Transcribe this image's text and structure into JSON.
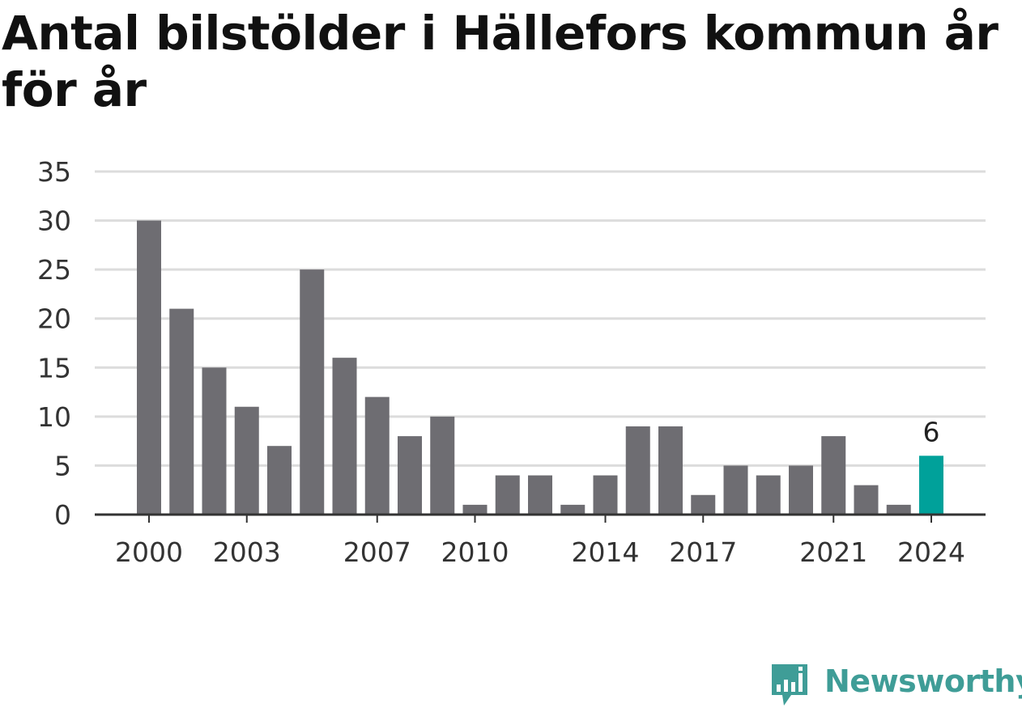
{
  "title": "Antal bilstölder i Hällefors kommun år för år",
  "brand": {
    "name": "Newsworthy",
    "color": "#3f9d97",
    "icon": "newsworthy-logo-icon"
  },
  "colors": {
    "bar": "#6e6d72",
    "highlight": "#00a19a",
    "grid": "#dcdcdc",
    "axis": "#333333"
  },
  "chart_data": {
    "type": "bar",
    "title": "Antal bilstölder i Hällefors kommun år för år",
    "xlabel": "",
    "ylabel": "",
    "categories": [
      "2000",
      "2001",
      "2002",
      "2003",
      "2004",
      "2005",
      "2006",
      "2007",
      "2008",
      "2009",
      "2010",
      "2011",
      "2012",
      "2013",
      "2014",
      "2015",
      "2016",
      "2017",
      "2018",
      "2019",
      "2020",
      "2021",
      "2022",
      "2023",
      "2024"
    ],
    "values": [
      30,
      21,
      15,
      11,
      7,
      25,
      16,
      12,
      8,
      10,
      1,
      4,
      4,
      1,
      4,
      9,
      9,
      2,
      5,
      4,
      5,
      8,
      3,
      1,
      6
    ],
    "highlight_category": "2024",
    "data_labels": [
      {
        "category": "2024",
        "text": "6"
      }
    ],
    "x_tick_labels": [
      "2000",
      "2003",
      "2007",
      "2010",
      "2014",
      "2017",
      "2021",
      "2024"
    ],
    "y_ticks": [
      0,
      5,
      10,
      15,
      20,
      25,
      30,
      35
    ],
    "ylim": [
      0,
      35
    ],
    "grid": true,
    "legend": "none"
  }
}
